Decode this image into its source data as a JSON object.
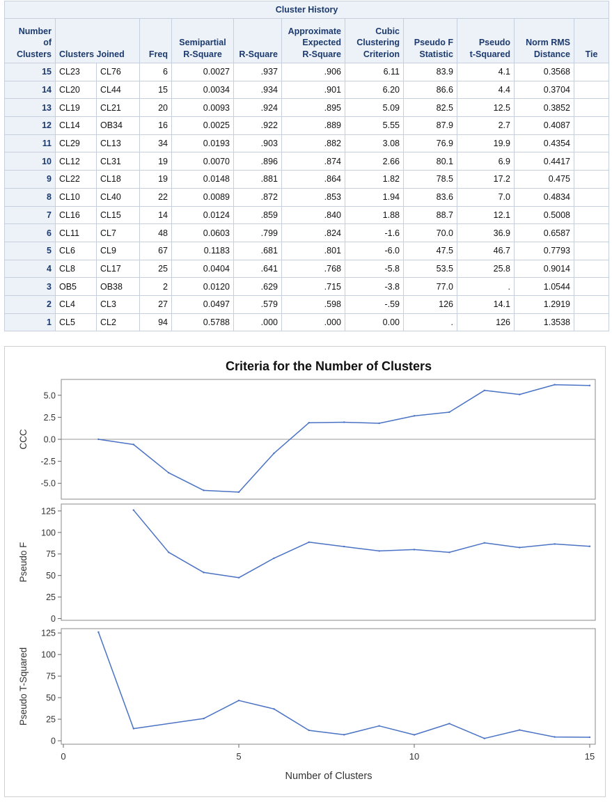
{
  "table": {
    "caption": "Cluster History",
    "headers": {
      "num_clusters": [
        "Number",
        "of",
        "Clusters"
      ],
      "clusters_joined": [
        "Clusters Joined"
      ],
      "freq": [
        "Freq"
      ],
      "spr": [
        "Semipartial",
        "R-Square"
      ],
      "rsq": [
        "R-Square"
      ],
      "erq": [
        "Approximate",
        "Expected",
        "R-Square"
      ],
      "ccc": [
        "Cubic",
        "Clustering",
        "Criterion"
      ],
      "psf": [
        "Pseudo F",
        "Statistic"
      ],
      "pst2": [
        "Pseudo",
        "t-Squared"
      ],
      "norm": [
        "Norm RMS",
        "Distance"
      ],
      "tie": [
        "Tie"
      ]
    },
    "rows": [
      {
        "n": "15",
        "a": "CL23",
        "b": "CL76",
        "freq": "6",
        "spr": "0.0027",
        "rsq": ".937",
        "erq": ".906",
        "ccc": "6.11",
        "psf": "83.9",
        "pst2": "4.1",
        "norm": "0.3568",
        "tie": ""
      },
      {
        "n": "14",
        "a": "CL20",
        "b": "CL44",
        "freq": "15",
        "spr": "0.0034",
        "rsq": ".934",
        "erq": ".901",
        "ccc": "6.20",
        "psf": "86.6",
        "pst2": "4.4",
        "norm": "0.3704",
        "tie": ""
      },
      {
        "n": "13",
        "a": "CL19",
        "b": "CL21",
        "freq": "20",
        "spr": "0.0093",
        "rsq": ".924",
        "erq": ".895",
        "ccc": "5.09",
        "psf": "82.5",
        "pst2": "12.5",
        "norm": "0.3852",
        "tie": ""
      },
      {
        "n": "12",
        "a": "CL14",
        "b": "OB34",
        "freq": "16",
        "spr": "0.0025",
        "rsq": ".922",
        "erq": ".889",
        "ccc": "5.55",
        "psf": "87.9",
        "pst2": "2.7",
        "norm": "0.4087",
        "tie": ""
      },
      {
        "n": "11",
        "a": "CL29",
        "b": "CL13",
        "freq": "34",
        "spr": "0.0193",
        "rsq": ".903",
        "erq": ".882",
        "ccc": "3.08",
        "psf": "76.9",
        "pst2": "19.9",
        "norm": "0.4354",
        "tie": ""
      },
      {
        "n": "10",
        "a": "CL12",
        "b": "CL31",
        "freq": "19",
        "spr": "0.0070",
        "rsq": ".896",
        "erq": ".874",
        "ccc": "2.66",
        "psf": "80.1",
        "pst2": "6.9",
        "norm": "0.4417",
        "tie": ""
      },
      {
        "n": "9",
        "a": "CL22",
        "b": "CL18",
        "freq": "19",
        "spr": "0.0148",
        "rsq": ".881",
        "erq": ".864",
        "ccc": "1.82",
        "psf": "78.5",
        "pst2": "17.2",
        "norm": "0.475",
        "tie": ""
      },
      {
        "n": "8",
        "a": "CL10",
        "b": "CL40",
        "freq": "22",
        "spr": "0.0089",
        "rsq": ".872",
        "erq": ".853",
        "ccc": "1.94",
        "psf": "83.6",
        "pst2": "7.0",
        "norm": "0.4834",
        "tie": ""
      },
      {
        "n": "7",
        "a": "CL16",
        "b": "CL15",
        "freq": "14",
        "spr": "0.0124",
        "rsq": ".859",
        "erq": ".840",
        "ccc": "1.88",
        "psf": "88.7",
        "pst2": "12.1",
        "norm": "0.5008",
        "tie": ""
      },
      {
        "n": "6",
        "a": "CL11",
        "b": "CL7",
        "freq": "48",
        "spr": "0.0603",
        "rsq": ".799",
        "erq": ".824",
        "ccc": "-1.6",
        "psf": "70.0",
        "pst2": "36.9",
        "norm": "0.6587",
        "tie": ""
      },
      {
        "n": "5",
        "a": "CL6",
        "b": "CL9",
        "freq": "67",
        "spr": "0.1183",
        "rsq": ".681",
        "erq": ".801",
        "ccc": "-6.0",
        "psf": "47.5",
        "pst2": "46.7",
        "norm": "0.7793",
        "tie": ""
      },
      {
        "n": "4",
        "a": "CL8",
        "b": "CL17",
        "freq": "25",
        "spr": "0.0404",
        "rsq": ".641",
        "erq": ".768",
        "ccc": "-5.8",
        "psf": "53.5",
        "pst2": "25.8",
        "norm": "0.9014",
        "tie": ""
      },
      {
        "n": "3",
        "a": "OB5",
        "b": "OB38",
        "freq": "2",
        "spr": "0.0120",
        "rsq": ".629",
        "erq": ".715",
        "ccc": "-3.8",
        "psf": "77.0",
        "pst2": ".",
        "norm": "1.0544",
        "tie": ""
      },
      {
        "n": "2",
        "a": "CL4",
        "b": "CL3",
        "freq": "27",
        "spr": "0.0497",
        "rsq": ".579",
        "erq": ".598",
        "ccc": "-.59",
        "psf": "126",
        "pst2": "14.1",
        "norm": "1.2919",
        "tie": ""
      },
      {
        "n": "1",
        "a": "CL5",
        "b": "CL2",
        "freq": "94",
        "spr": "0.5788",
        "rsq": ".000",
        "erq": ".000",
        "ccc": "0.00",
        "psf": ".",
        "pst2": "126",
        "norm": "1.3538",
        "tie": ""
      }
    ]
  },
  "chart_data": {
    "type": "line",
    "title": "Criteria for the Number of Clusters",
    "xlabel": "Number of Clusters",
    "xlim": [
      0,
      15
    ],
    "x_ticks": [
      0,
      5,
      10,
      15
    ],
    "line_color": "#4a72c4",
    "panels": [
      {
        "ylabel": "CCC",
        "ylim": [
          -6.8,
          6.8
        ],
        "y_ticks": [
          -5.0,
          -2.5,
          0.0,
          2.5,
          5.0
        ],
        "y_tick_labels": [
          "-5.0",
          "-2.5",
          "0.0",
          "2.5",
          "5.0"
        ],
        "reference_line": 0,
        "x": [
          1,
          2,
          3,
          4,
          5,
          6,
          7,
          8,
          9,
          10,
          11,
          12,
          13,
          14,
          15
        ],
        "y": [
          0.0,
          -0.59,
          -3.8,
          -5.8,
          -6.0,
          -1.6,
          1.88,
          1.94,
          1.82,
          2.66,
          3.08,
          5.55,
          5.09,
          6.2,
          6.11
        ]
      },
      {
        "ylabel": "Pseudo F",
        "ylim": [
          -2,
          133
        ],
        "y_ticks": [
          0,
          25,
          50,
          75,
          100,
          125
        ],
        "y_tick_labels": [
          "0",
          "25",
          "50",
          "75",
          "100",
          "125"
        ],
        "x": [
          2,
          3,
          4,
          5,
          6,
          7,
          8,
          9,
          10,
          11,
          12,
          13,
          14,
          15
        ],
        "y": [
          126,
          77.0,
          53.5,
          47.5,
          70.0,
          88.7,
          83.6,
          78.5,
          80.1,
          76.9,
          87.9,
          82.5,
          86.6,
          83.9
        ]
      },
      {
        "ylabel": "Pseudo T-Squared",
        "ylim": [
          -4,
          130
        ],
        "y_ticks": [
          0,
          25,
          50,
          75,
          100,
          125
        ],
        "y_tick_labels": [
          "0",
          "25",
          "50",
          "75",
          "100",
          "125"
        ],
        "x": [
          1,
          2,
          4,
          5,
          6,
          7,
          8,
          9,
          10,
          11,
          12,
          13,
          14,
          15
        ],
        "y": [
          126,
          14.1,
          25.8,
          46.7,
          36.9,
          12.1,
          7.0,
          17.2,
          6.9,
          19.9,
          2.7,
          12.5,
          4.4,
          4.1
        ]
      }
    ]
  }
}
